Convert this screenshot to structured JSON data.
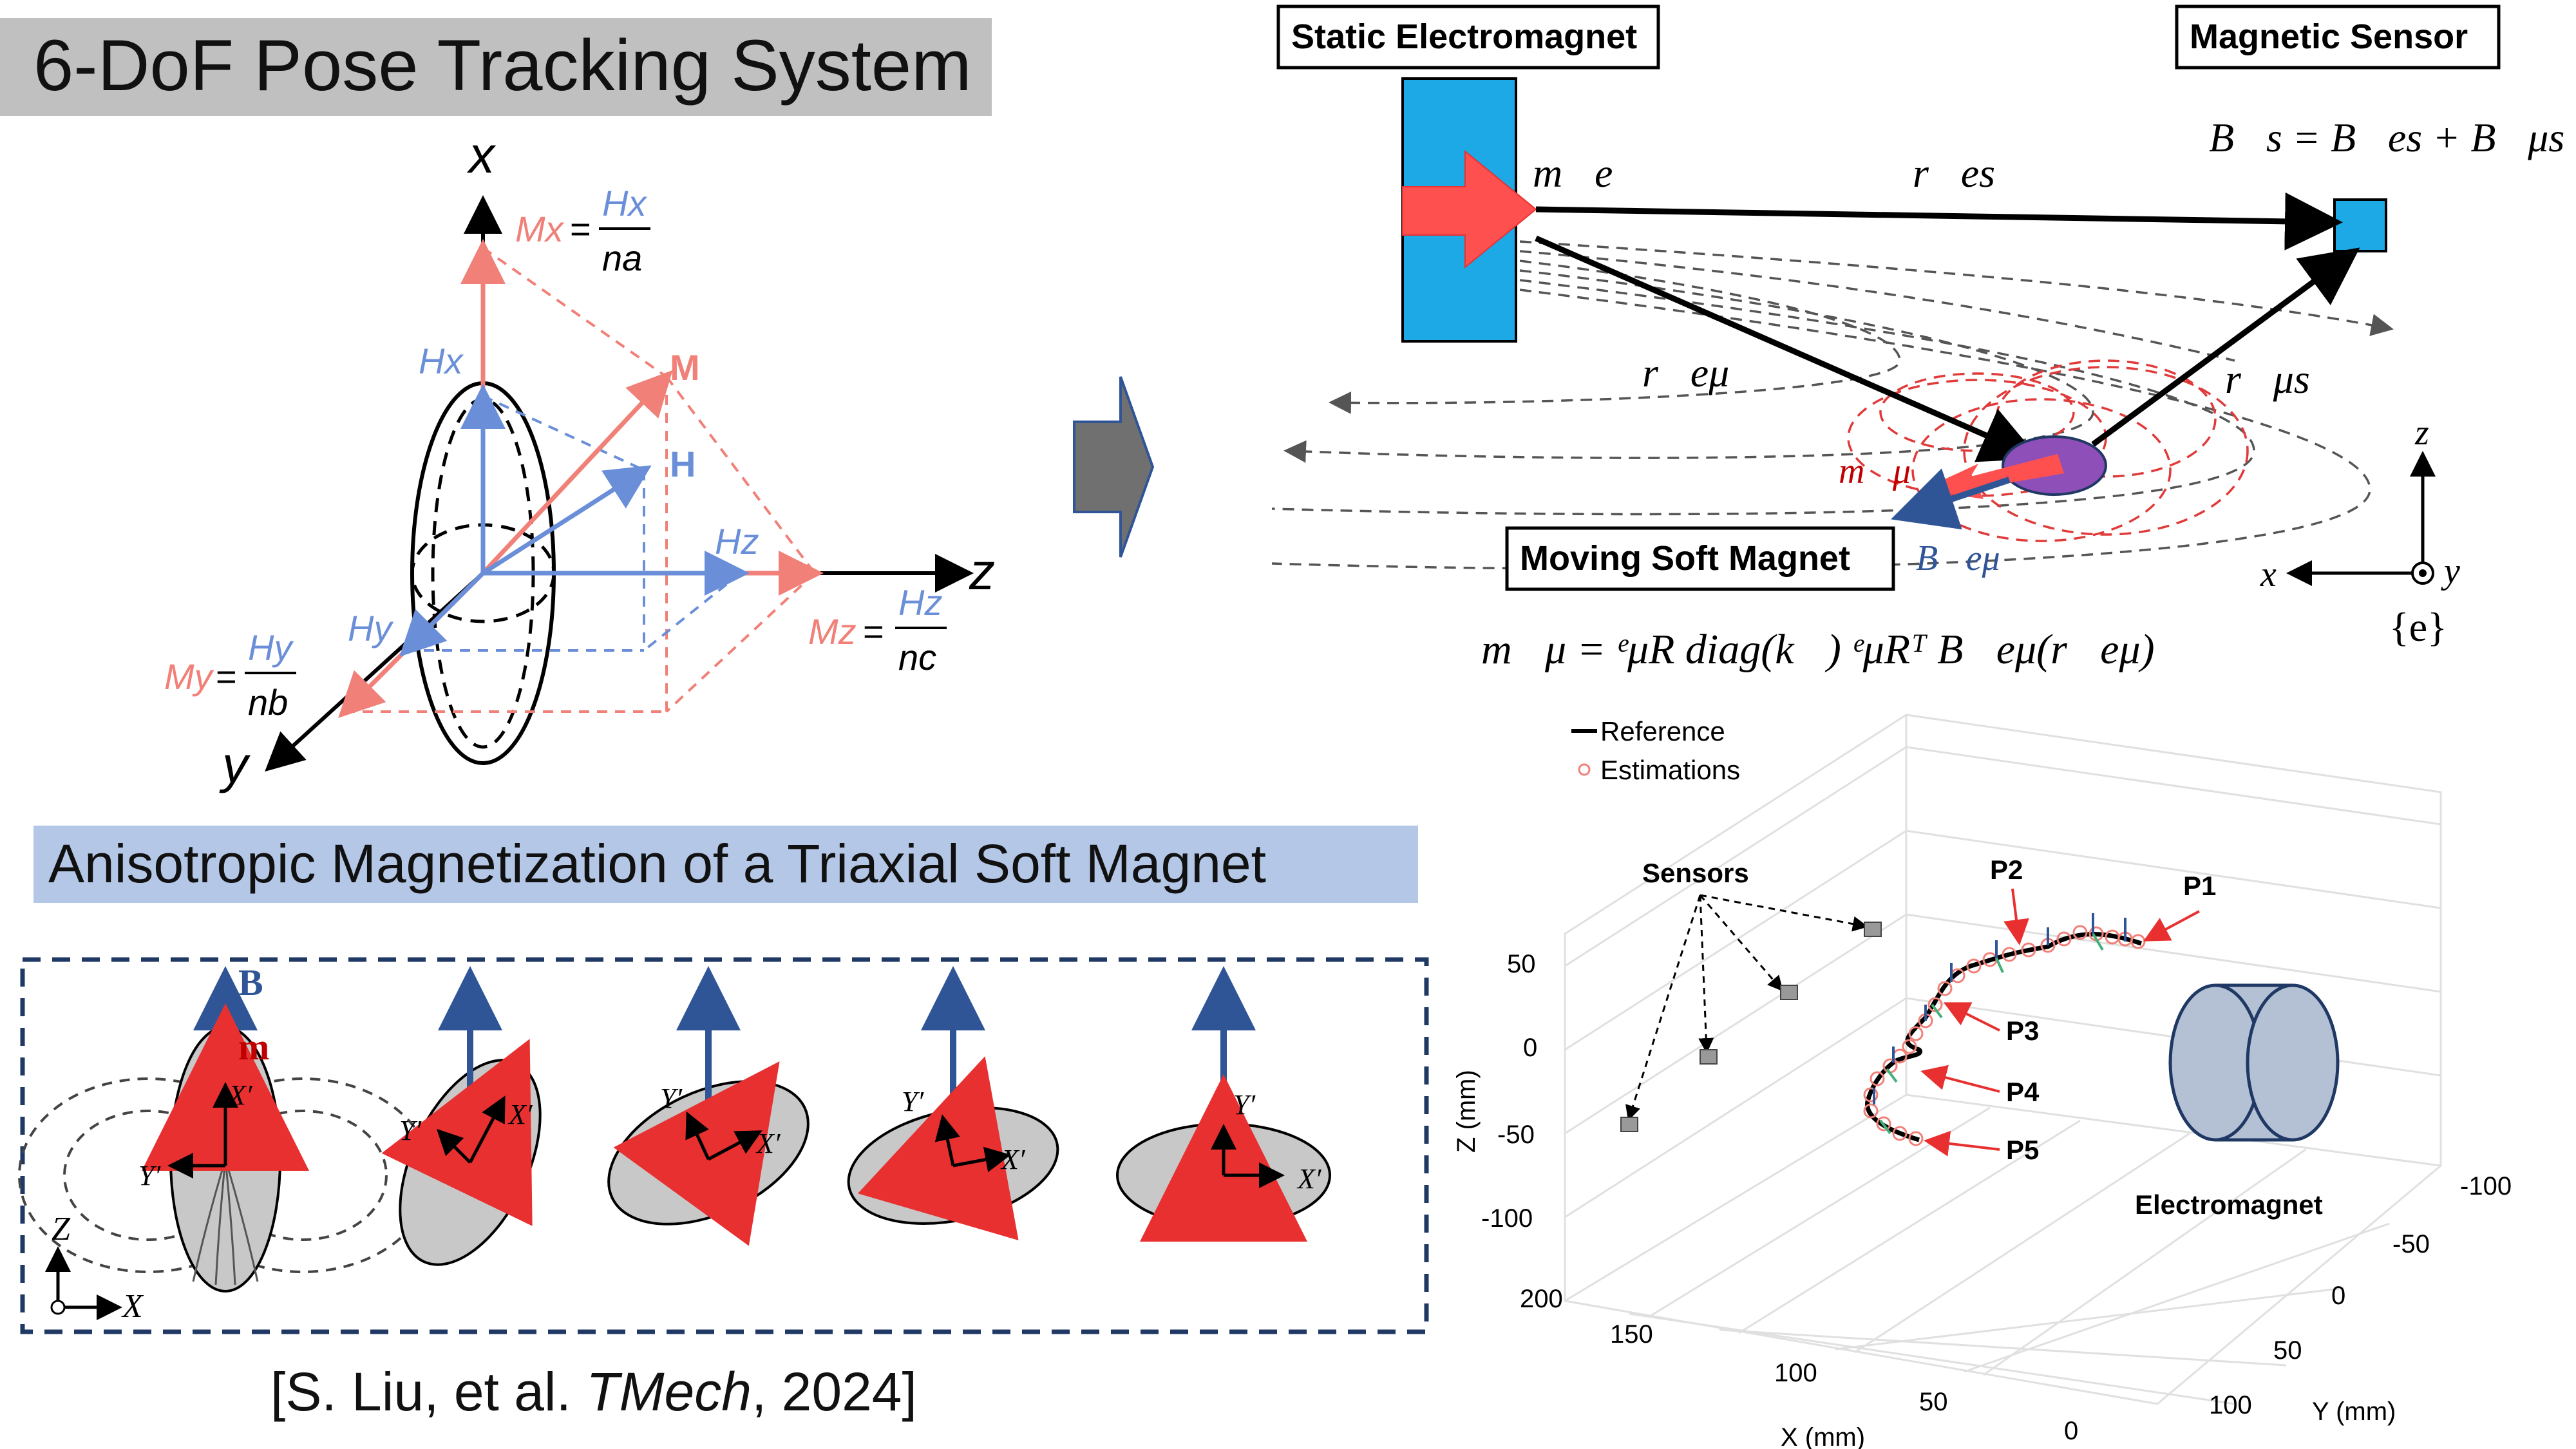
{
  "title": "6-DoF Pose Tracking System",
  "subtitle": "Anisotropic Magnetization of a Triaxial Soft Magnet",
  "citation": {
    "prefix": "[S. Liu, et al. ",
    "journal": "TMech",
    "suffix": ", 2024]"
  },
  "ellipsoid_diagram": {
    "axis_x": "x",
    "axis_y": "y",
    "axis_z": "z",
    "M": "M",
    "H": "H",
    "Hx": "Hx",
    "Hy": "Hy",
    "Hz": "Hz",
    "Mx": "Mx",
    "My": "My",
    "Mz": "Mz",
    "eq": "=",
    "na": "na",
    "nb": "nb",
    "nc": "nc"
  },
  "system_diagram": {
    "static_electromagnet": "Static Electromagnet",
    "magnetic_sensor": "Magnetic Sensor",
    "moving_soft_magnet": "Moving Soft Magnet",
    "m_e": "m⃗e",
    "r_es": "r⃗es",
    "r_emu": "r⃗eμ",
    "r_mus": "r⃗μs",
    "m_mu": "m⃗μ",
    "B_emu": "B⃗eμ",
    "sensor_equation": "B⃗s = B⃗es + B⃗μs",
    "moment_equation": "m⃗μ = ᵉμR diag(k⃗) ᵉμRᵀ B⃗eμ(r⃗eμ)",
    "frame": {
      "z": "z",
      "x": "x",
      "y": "y",
      "name": "{e}"
    }
  },
  "magnetization_panel": {
    "B": "B",
    "m": "m",
    "Xp": "X′",
    "Yp": "Y′",
    "Z": "Z",
    "X": "X"
  },
  "colors": {
    "electromagnet_blue": "#1ca9e6",
    "red_arrow": "#ff5050",
    "dark_red": "#c00000",
    "blue_vector": "#6a8fd8",
    "salmon": "#f08078",
    "magnet_purple": "#8e4fb8",
    "title_bg": "#c0c0c0",
    "subtitle_bg": "#b4c7e7",
    "dashed_border": "#1f3864",
    "cylinder_fill": "#b4c0d4"
  },
  "chart_data": {
    "type": "scatter",
    "title": "",
    "legend": [
      "Reference",
      "Estimations"
    ],
    "legend_position": "top-left",
    "xlabel": "X (mm)",
    "ylabel": "Y (mm)",
    "zlabel": "Z (mm)",
    "x_ticks": [
      "200",
      "150",
      "100",
      "50",
      "0"
    ],
    "y_ticks": [
      "-100",
      "-50",
      "0",
      "50",
      "100"
    ],
    "z_ticks": [
      "50",
      "0",
      "-50",
      "-100"
    ],
    "xlim": [
      0,
      200
    ],
    "ylim": [
      -100,
      100
    ],
    "zlim": [
      -100,
      50
    ],
    "grid": true,
    "annotations": [
      "Sensors",
      "P1",
      "P2",
      "P3",
      "P4",
      "P5",
      "Electromagnet"
    ]
  }
}
